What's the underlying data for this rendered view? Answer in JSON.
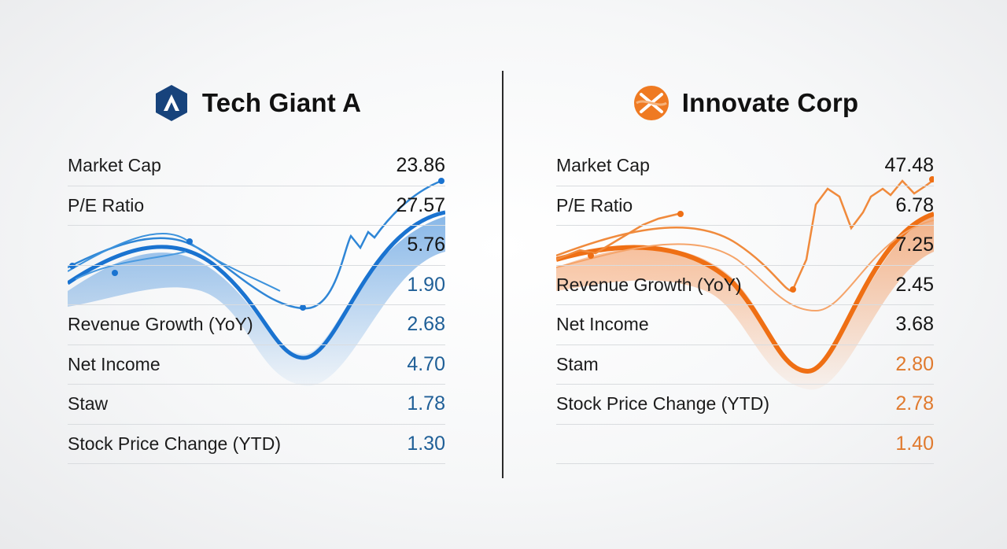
{
  "companies": [
    {
      "name": "Tech Giant A",
      "logo_icon": "hexagon-a-logo-icon",
      "accent": "#1f74cf",
      "rows": [
        {
          "label": "Market Cap",
          "value": "23.86"
        },
        {
          "label": "P/E Ratio",
          "value": "27.57"
        },
        {
          "label": "",
          "value": "5.76"
        },
        {
          "label": "",
          "value": "1.90"
        },
        {
          "label": "Revenue Growth (YoY)",
          "value": "2.68"
        },
        {
          "label": "Net Income",
          "value": "4.70"
        },
        {
          "label": "Staw",
          "value": "1.78"
        },
        {
          "label": "Stock Price Change (YTD)",
          "value": "1.30"
        }
      ]
    },
    {
      "name": "Innovate Corp",
      "logo_icon": "orange-orb-logo-icon",
      "accent": "#ef7a22",
      "rows": [
        {
          "label": "Market Cap",
          "value": "47.48"
        },
        {
          "label": "P/E Ratio",
          "value": "6.78"
        },
        {
          "label": "",
          "value": "7.25"
        },
        {
          "label": "Revenue Growth (YoY)",
          "value": "2.45"
        },
        {
          "label": "Net Income",
          "value": "3.68"
        },
        {
          "label": "Stam",
          "value": "2.80"
        },
        {
          "label": "Stock Price Change (YTD)",
          "value": "2.78"
        },
        {
          "label": "",
          "value": "1.40"
        }
      ]
    }
  ]
}
